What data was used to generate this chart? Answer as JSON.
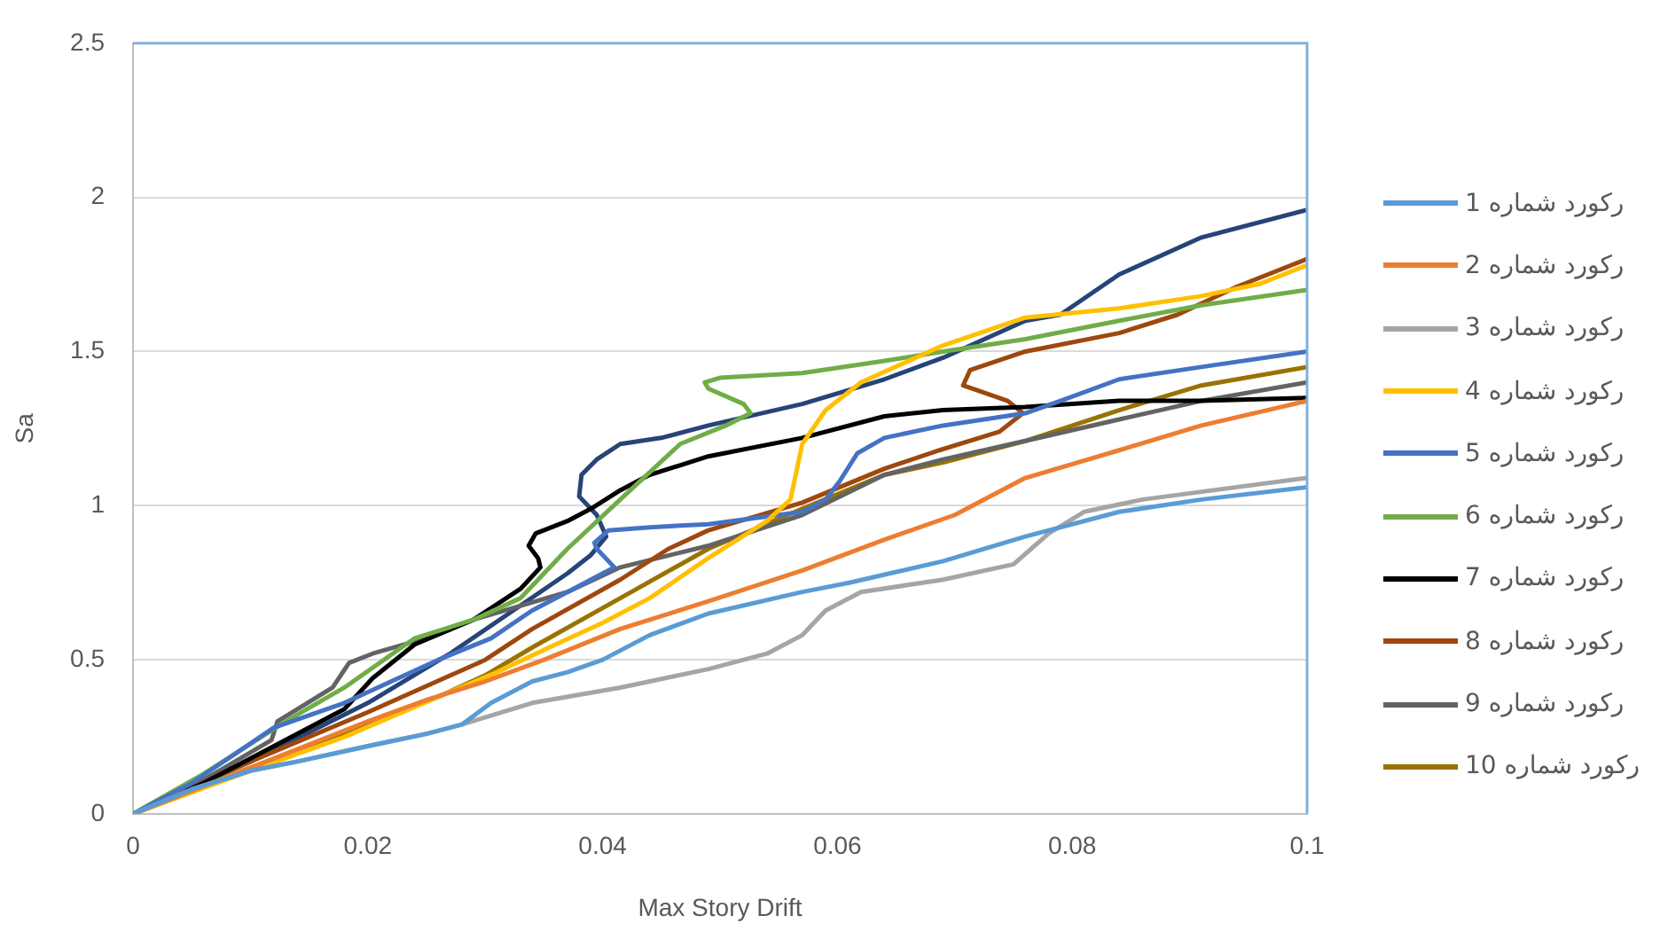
{
  "chart_data": {
    "type": "line",
    "xlabel": "Max Story Drift",
    "ylabel": "Sa",
    "xlim": [
      0,
      0.1
    ],
    "xticks": [
      0,
      0.02,
      0.04,
      0.06,
      0.08,
      0.1
    ],
    "ylim": [
      0,
      2.5
    ],
    "yticks": [
      0,
      0.5,
      1,
      1.5,
      2,
      2.5
    ],
    "grid": "y",
    "legend": "right",
    "marker": "none",
    "line_style": "solid",
    "series": [
      {
        "name": "رکورد شماره 1",
        "color": "#5b9bd5",
        "x": [
          0,
          0.005,
          0.01,
          0.014,
          0.02,
          0.025,
          0.028,
          0.0305,
          0.034,
          0.037,
          0.04,
          0.044,
          0.049,
          0.057,
          0.061,
          0.069,
          0.076,
          0.084,
          0.091,
          0.1
        ],
        "values": [
          0,
          0.08,
          0.14,
          0.17,
          0.22,
          0.26,
          0.29,
          0.36,
          0.43,
          0.46,
          0.5,
          0.58,
          0.65,
          0.72,
          0.75,
          0.82,
          0.9,
          0.98,
          1.02,
          1.06
        ]
      },
      {
        "name": "رکورد شماره 2",
        "color": "#ed7d31",
        "x": [
          0,
          0.01,
          0.02,
          0.025,
          0.03,
          0.035,
          0.0415,
          0.049,
          0.057,
          0.064,
          0.07,
          0.076,
          0.084,
          0.091,
          0.1
        ],
        "values": [
          0,
          0.15,
          0.3,
          0.37,
          0.43,
          0.5,
          0.6,
          0.69,
          0.79,
          0.89,
          0.97,
          1.09,
          1.18,
          1.26,
          1.34
        ]
      },
      {
        "name": "رکورد شماره 3",
        "color": "#a5a5a5",
        "x": [
          0,
          0.005,
          0.01,
          0.014,
          0.02,
          0.025,
          0.028,
          0.034,
          0.0415,
          0.049,
          0.054,
          0.057,
          0.059,
          0.062,
          0.069,
          0.075,
          0.078,
          0.081,
          0.086,
          0.1
        ],
        "values": [
          0,
          0.08,
          0.14,
          0.17,
          0.22,
          0.26,
          0.29,
          0.36,
          0.41,
          0.47,
          0.52,
          0.58,
          0.66,
          0.72,
          0.76,
          0.81,
          0.91,
          0.98,
          1.02,
          1.09
        ]
      },
      {
        "name": "رکورد شماره 4",
        "color": "#ffc000",
        "x": [
          0,
          0.01,
          0.018,
          0.026,
          0.031,
          0.036,
          0.04,
          0.044,
          0.049,
          0.054,
          0.056,
          0.057,
          0.059,
          0.062,
          0.069,
          0.076,
          0.084,
          0.091,
          0.096,
          0.1
        ],
        "values": [
          0,
          0.14,
          0.25,
          0.38,
          0.46,
          0.55,
          0.62,
          0.7,
          0.83,
          0.95,
          1.02,
          1.2,
          1.31,
          1.4,
          1.52,
          1.61,
          1.64,
          1.68,
          1.72,
          1.78
        ]
      },
      {
        "name": "رکورد شماره 5",
        "color": "#4472c4",
        "x": [
          0,
          0.005,
          0.012,
          0.018,
          0.026,
          0.0305,
          0.034,
          0.037,
          0.04,
          0.041,
          0.0395,
          0.0393,
          0.0405,
          0.044,
          0.049,
          0.057,
          0.059,
          0.0602,
          0.0617,
          0.064,
          0.069,
          0.076,
          0.079,
          0.084,
          0.091,
          0.1
        ],
        "values": [
          0,
          0.1,
          0.28,
          0.36,
          0.5,
          0.57,
          0.66,
          0.72,
          0.78,
          0.8,
          0.86,
          0.88,
          0.92,
          0.93,
          0.94,
          0.98,
          1.02,
          1.08,
          1.17,
          1.22,
          1.26,
          1.3,
          1.34,
          1.41,
          1.45,
          1.5
        ]
      },
      {
        "name": "رکورد شماره 6",
        "color": "#70ad47",
        "x": [
          0,
          0.006,
          0.013,
          0.018,
          0.024,
          0.029,
          0.033,
          0.034,
          0.037,
          0.0415,
          0.0466,
          0.0505,
          0.0526,
          0.052,
          0.049,
          0.0487,
          0.05,
          0.057,
          0.064,
          0.069,
          0.076,
          0.084,
          0.091,
          0.1
        ],
        "values": [
          0,
          0.13,
          0.3,
          0.41,
          0.57,
          0.63,
          0.7,
          0.74,
          0.86,
          1.02,
          1.2,
          1.26,
          1.3,
          1.33,
          1.38,
          1.4,
          1.415,
          1.43,
          1.47,
          1.5,
          1.54,
          1.6,
          1.65,
          1.7
        ]
      },
      {
        "name": "رکورد شماره 7",
        "color": "#000000",
        "x": [
          0,
          0.006,
          0.012,
          0.018,
          0.0204,
          0.024,
          0.029,
          0.033,
          0.0347,
          0.0345,
          0.0337,
          0.0343,
          0.037,
          0.039,
          0.0415,
          0.044,
          0.049,
          0.057,
          0.064,
          0.069,
          0.076,
          0.084,
          0.091,
          0.1
        ],
        "values": [
          0,
          0.1,
          0.22,
          0.34,
          0.44,
          0.55,
          0.63,
          0.73,
          0.8,
          0.83,
          0.87,
          0.91,
          0.95,
          0.99,
          1.05,
          1.1,
          1.16,
          1.22,
          1.29,
          1.31,
          1.32,
          1.34,
          1.34,
          1.35
        ]
      },
      {
        "name": "رکورد شماره 8",
        "color": "#9e480e",
        "x": [
          0,
          0.01,
          0.02,
          0.03,
          0.034,
          0.0415,
          0.0456,
          0.049,
          0.057,
          0.064,
          0.0687,
          0.0738,
          0.0758,
          0.0745,
          0.0707,
          0.0713,
          0.076,
          0.084,
          0.089,
          0.094,
          0.1
        ],
        "values": [
          0,
          0.17,
          0.33,
          0.5,
          0.6,
          0.76,
          0.86,
          0.92,
          1.01,
          1.12,
          1.18,
          1.24,
          1.3,
          1.34,
          1.39,
          1.44,
          1.5,
          1.56,
          1.62,
          1.71,
          1.8
        ]
      },
      {
        "name": "رکورد شماره 9",
        "color": "#636363",
        "x": [
          0,
          0.006,
          0.0118,
          0.0123,
          0.017,
          0.0184,
          0.0204,
          0.024,
          0.029,
          0.037,
          0.0415,
          0.049,
          0.057,
          0.064,
          0.069,
          0.076,
          0.084,
          0.091,
          0.1
        ],
        "values": [
          0,
          0.11,
          0.24,
          0.3,
          0.41,
          0.49,
          0.52,
          0.56,
          0.63,
          0.72,
          0.8,
          0.87,
          0.97,
          1.1,
          1.15,
          1.21,
          1.28,
          1.34,
          1.4
        ]
      },
      {
        "name": "رکورد شماره 10",
        "color": "#997300",
        "x": [
          0,
          0.01,
          0.02,
          0.026,
          0.03,
          0.034,
          0.0415,
          0.049,
          0.057,
          0.064,
          0.069,
          0.076,
          0.084,
          0.091,
          0.1
        ],
        "values": [
          0,
          0.15,
          0.29,
          0.38,
          0.45,
          0.54,
          0.7,
          0.86,
          0.99,
          1.1,
          1.14,
          1.21,
          1.31,
          1.39,
          1.45
        ]
      },
      {
        "color": "#264478",
        "x": [
          0,
          0.01,
          0.02,
          0.027,
          0.032,
          0.037,
          0.039,
          0.0403,
          0.0395,
          0.038,
          0.0382,
          0.0395,
          0.0415,
          0.045,
          0.049,
          0.057,
          0.064,
          0.069,
          0.076,
          0.079,
          0.084,
          0.091,
          0.1
        ],
        "values": [
          0,
          0.17,
          0.36,
          0.52,
          0.65,
          0.78,
          0.84,
          0.9,
          0.97,
          1.03,
          1.1,
          1.15,
          1.2,
          1.22,
          1.26,
          1.33,
          1.41,
          1.48,
          1.6,
          1.62,
          1.75,
          1.87,
          1.96
        ]
      }
    ]
  }
}
